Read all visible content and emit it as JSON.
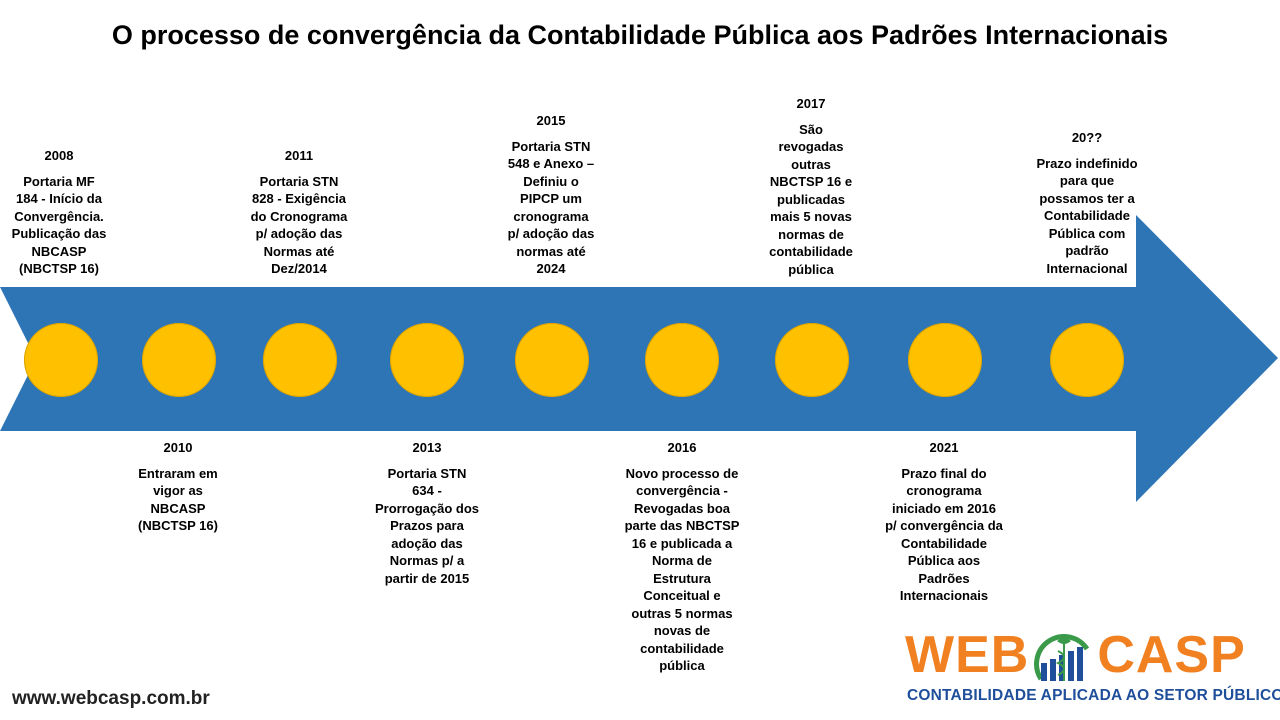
{
  "title": "O processo de convergência da Contabilidade Pública aos Padrões Internacionais",
  "colors": {
    "arrow": "#2E75B6",
    "milestone": "#FFC000",
    "logo_orange": "#F08020",
    "logo_blue": "#1F4E9A",
    "logo_green": "#3A9A4A"
  },
  "events": [
    {
      "year": "2008",
      "text": "Portaria MF\n184 - Início da\nConvergência.\nPublicação das\nNBCASP\n(NBCTSP 16)"
    },
    {
      "year": "2010",
      "text": "Entraram em\nvigor as\nNBCASP\n(NBCTSP 16)"
    },
    {
      "year": "2011",
      "text": "Portaria STN\n828 - Exigência\ndo Cronograma\np/ adoção das\nNormas até\nDez/2014"
    },
    {
      "year": "2013",
      "text": "Portaria STN\n634 -\nProrrogação dos\nPrazos para\nadoção das\nNormas p/ a\npartir de 2015"
    },
    {
      "year": "2015",
      "text": "Portaria STN\n548 e Anexo –\nDefiniu o\nPIPCP um\ncronograma\np/ adoção das\nnormas até\n2024"
    },
    {
      "year": "2016",
      "text": "Novo processo de\nconvergência -\nRevogadas boa\nparte das NBCTSP\n16 e publicada a\nNorma de\nEstrutura\nConceitual e\noutras 5 normas\nnovas de\ncontabilidade\npública"
    },
    {
      "year": "2017",
      "text": "São\nrevogadas\noutras\nNBCTSP 16 e\npublicadas\nmais 5 novas\nnormas de\ncontabilidade\npública"
    },
    {
      "year": "2021",
      "text": "Prazo final do\ncronograma\niniciado em 2016\np/ convergência da\nContabilidade\nPública aos\nPadrões\nInternacionais"
    },
    {
      "year": "20??",
      "text": "Prazo indefinido\npara que\npossamos ter a\nContabilidade\nPública com\npadrão\nInternacional"
    }
  ],
  "footer": {
    "url": "www.webcasp.com.br",
    "logo_left": "WEB",
    "logo_right": "CASP",
    "logo_tagline": "CONTABILIDADE APLICADA AO SETOR PÚBLICO"
  }
}
